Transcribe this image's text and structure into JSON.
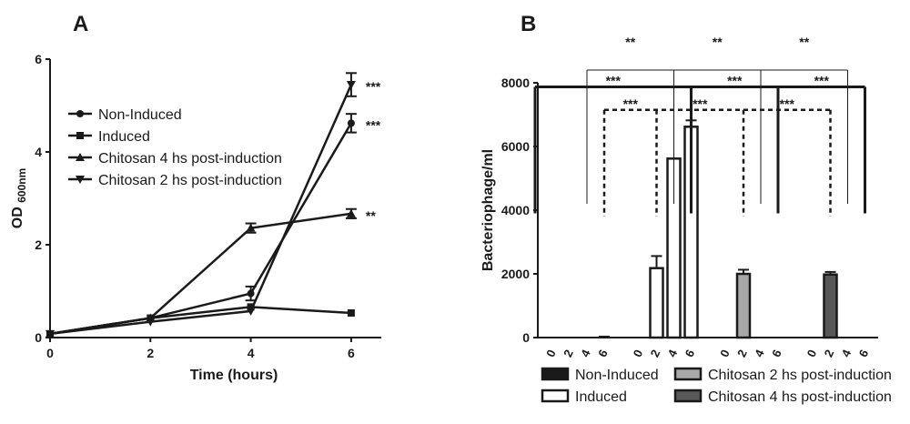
{
  "chart_data": [
    {
      "panel": "A",
      "type": "line",
      "xlabel": "Time (hours)",
      "ylabel": "OD",
      "ylabel_sub": "600nm",
      "xlim": [
        0,
        6.6
      ],
      "ylim": [
        0,
        6
      ],
      "xticks": [
        0,
        2,
        4,
        6
      ],
      "yticks": [
        0,
        2,
        4,
        6
      ],
      "legend_position": "upper-left",
      "series": [
        {
          "name": "Non-Induced",
          "marker": "circle",
          "x": [
            0,
            2,
            4,
            6
          ],
          "y": [
            0.08,
            0.42,
            0.95,
            4.62
          ],
          "err": [
            0.02,
            0.03,
            0.15,
            0.2
          ],
          "annotation": "***"
        },
        {
          "name": "Induced",
          "marker": "square",
          "x": [
            0,
            2,
            4,
            6
          ],
          "y": [
            0.08,
            0.42,
            0.66,
            0.53
          ],
          "err": [
            0.02,
            0.03,
            0.04,
            0.03
          ],
          "annotation": ""
        },
        {
          "name": "Chitosan 4 hs post-induction",
          "marker": "triangle-up",
          "x": [
            0,
            2,
            4,
            6
          ],
          "y": [
            0.08,
            0.42,
            2.36,
            2.67
          ],
          "err": [
            0.02,
            0.03,
            0.1,
            0.1
          ],
          "annotation": "**"
        },
        {
          "name": "Chitosan 2 hs post-induction",
          "marker": "triangle-down",
          "x": [
            0,
            2,
            4,
            6
          ],
          "y": [
            0.08,
            0.34,
            0.57,
            5.45
          ],
          "err": [
            0.02,
            0.03,
            0.05,
            0.25
          ],
          "annotation": "***"
        }
      ]
    },
    {
      "panel": "B",
      "type": "bar",
      "ylabel": "Bacteriophage/ml",
      "ylim": [
        0,
        8000
      ],
      "yticks": [
        0,
        2000,
        4000,
        6000,
        8000
      ],
      "legend_position": "bottom",
      "groups": [
        {
          "name": "Non-Induced",
          "fill": "#1a1a1a",
          "times": [
            "0",
            "2",
            "4",
            "6"
          ],
          "values": [
            0,
            0,
            0,
            0
          ],
          "err": [
            0,
            0,
            0,
            30
          ]
        },
        {
          "name": "Induced",
          "fill": "#ffffff",
          "times": [
            "0",
            "2",
            "4",
            "6"
          ],
          "values": [
            0,
            2180,
            5620,
            6620
          ],
          "err": [
            0,
            380,
            0,
            200
          ]
        },
        {
          "name": "Chitosan 2 hs post-induction",
          "fill": "#a8a8a8",
          "times": [
            "0",
            "2",
            "4",
            "6"
          ],
          "values": [
            0,
            2000,
            0,
            0
          ],
          "err": [
            0,
            130,
            0,
            0
          ]
        },
        {
          "name": "Chitosan 4 hs post-induction",
          "fill": "#585858",
          "times": [
            "0",
            "2",
            "4",
            "6"
          ],
          "values": [
            0,
            1980,
            0,
            0
          ],
          "err": [
            0,
            80,
            0,
            0
          ]
        }
      ],
      "significance": [
        {
          "style": "thin",
          "level": 8400,
          "drop_to": 4200,
          "label": "**",
          "pairs": [
            [
              0,
              1
            ],
            [
              1,
              2
            ],
            [
              2,
              3
            ]
          ]
        },
        {
          "style": "bold",
          "level": 7870,
          "drop_to": 3900,
          "label": "***",
          "pairs": [
            [
              0,
              1
            ],
            [
              1,
              2
            ],
            [
              2,
              3
            ]
          ]
        },
        {
          "style": "dashed",
          "level": 7150,
          "drop_to": 3800,
          "label": "***",
          "pairs": [
            [
              0,
              1
            ],
            [
              1,
              2
            ],
            [
              2,
              3
            ]
          ]
        }
      ]
    }
  ],
  "panels": {
    "a": "A",
    "b": "B"
  }
}
